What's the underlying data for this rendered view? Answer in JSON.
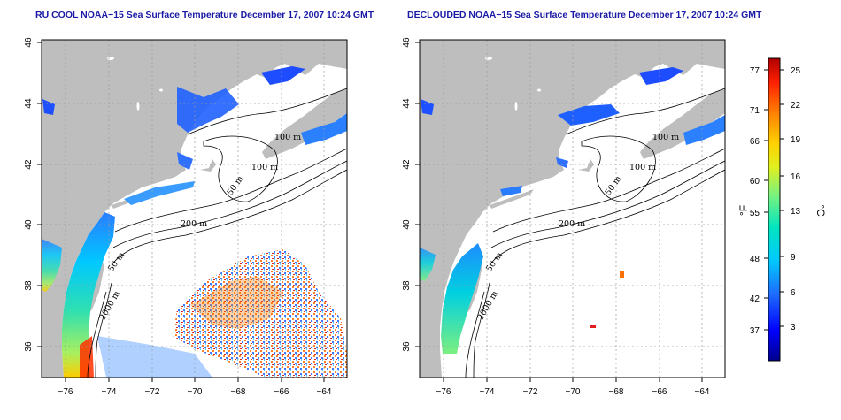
{
  "panels": [
    {
      "title": "RU COOL NOAA−15 Sea Surface Temperature December 17, 2007 10:24 GMT",
      "contours": [
        "100 m",
        "100 m",
        "50 m",
        "200 m",
        "50 m",
        "2000 m"
      ]
    },
    {
      "title": "DECLOUDED NOAA−15 Sea Surface Temperature December 17, 2007 10:24 GMT",
      "contours": [
        "100 m",
        "100 m",
        "50 m",
        "200 m",
        "50 m",
        "2000 m"
      ]
    }
  ],
  "axes": {
    "x_ticks": [
      "−76",
      "−74",
      "−72",
      "−70",
      "−68",
      "−66",
      "−64"
    ],
    "y_ticks": [
      "46",
      "44",
      "42",
      "40",
      "38",
      "36"
    ],
    "lon_range": [
      -77.2,
      -63.0
    ],
    "lat_range": [
      35.0,
      46.0
    ]
  },
  "colorbar": {
    "fahrenheit_ticks": [
      "77",
      "71",
      "66",
      "60",
      "55",
      "48",
      "42",
      "37"
    ],
    "celsius_ticks": [
      "25",
      "22",
      "19",
      "16",
      "13",
      "9",
      "6",
      "3"
    ],
    "unit_f": "°F",
    "unit_c": "°C",
    "colors": [
      "#00008b",
      "#0000ff",
      "#1e6cff",
      "#00c8ff",
      "#00e5c0",
      "#7cf27c",
      "#e0f020",
      "#ffd000",
      "#ff8000",
      "#ff2000",
      "#b00000"
    ]
  },
  "colors": {
    "land": "#bebebe",
    "ocean": "#ffffff",
    "grid": "#999999"
  }
}
